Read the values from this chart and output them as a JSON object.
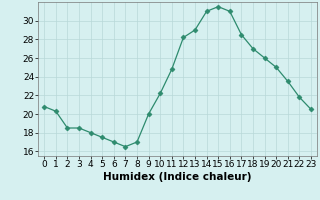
{
  "x": [
    0,
    1,
    2,
    3,
    4,
    5,
    6,
    7,
    8,
    9,
    10,
    11,
    12,
    13,
    14,
    15,
    16,
    17,
    18,
    19,
    20,
    21,
    22,
    23
  ],
  "y": [
    20.8,
    20.3,
    18.5,
    18.5,
    18.0,
    17.5,
    17.0,
    16.5,
    17.0,
    20.0,
    22.2,
    24.8,
    28.2,
    29.0,
    31.0,
    31.5,
    31.0,
    28.5,
    27.0,
    26.0,
    25.0,
    23.5,
    21.8,
    20.5
  ],
  "line_color": "#2e8b6e",
  "marker": "D",
  "marker_size": 2.5,
  "bg_color": "#d6f0f0",
  "grid_color": "#b8d8d8",
  "xlabel": "Humidex (Indice chaleur)",
  "xlim": [
    -0.5,
    23.5
  ],
  "ylim": [
    15.5,
    32
  ],
  "yticks": [
    16,
    18,
    20,
    22,
    24,
    26,
    28,
    30
  ],
  "xticks": [
    0,
    1,
    2,
    3,
    4,
    5,
    6,
    7,
    8,
    9,
    10,
    11,
    12,
    13,
    14,
    15,
    16,
    17,
    18,
    19,
    20,
    21,
    22,
    23
  ],
  "tick_label_fontsize": 6.5,
  "xlabel_fontsize": 7.5,
  "xlabel_fontweight": "bold"
}
